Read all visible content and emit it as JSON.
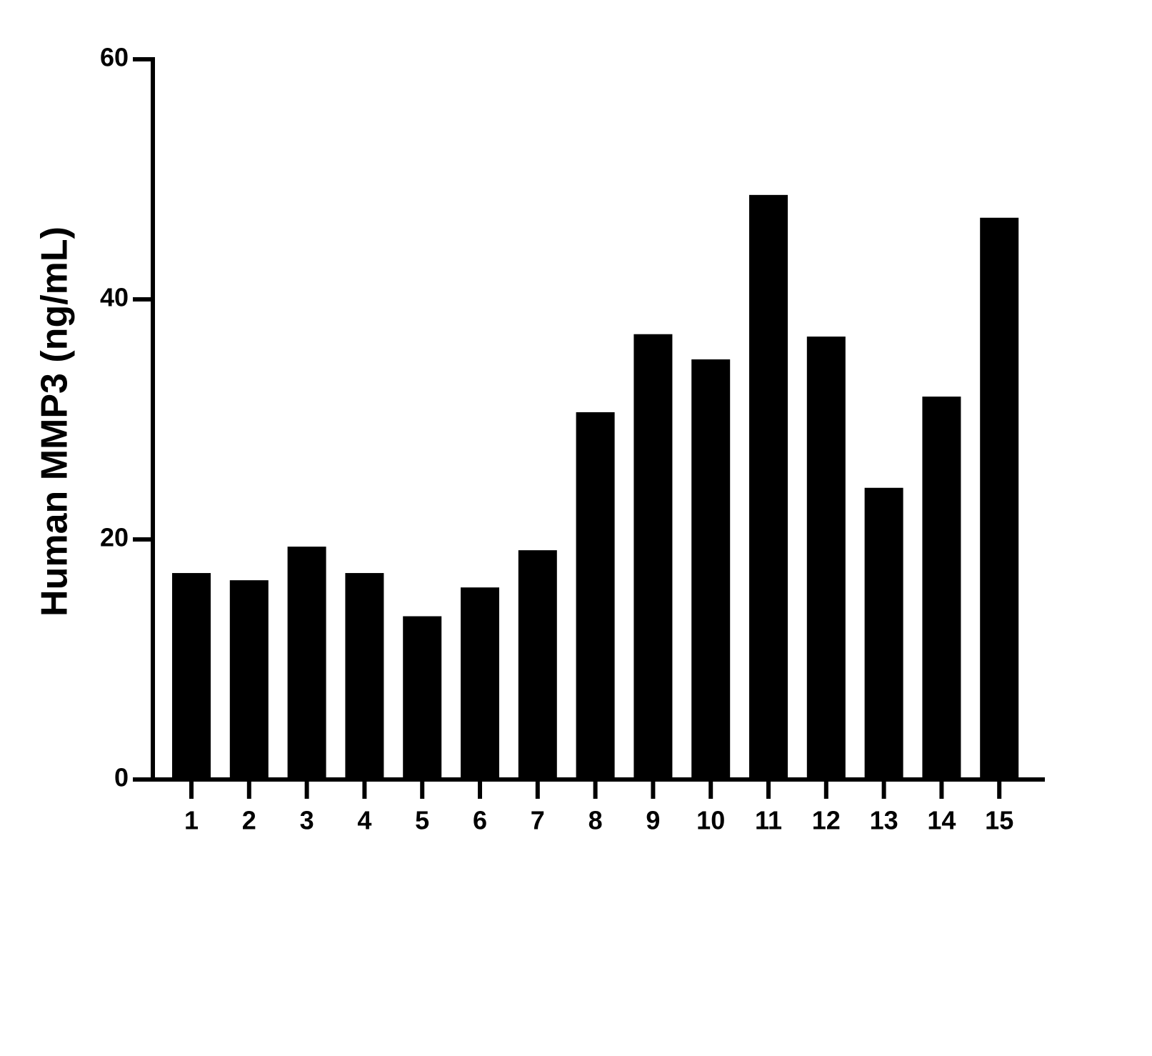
{
  "chart_data": {
    "type": "bar",
    "y_label": "Human MMP3 (ng/mL)",
    "categories": [
      "1",
      "2",
      "3",
      "4",
      "5",
      "6",
      "7",
      "8",
      "9",
      "10",
      "11",
      "12",
      "13",
      "14",
      "15"
    ],
    "values": [
      17.2,
      16.6,
      19.4,
      17.2,
      13.6,
      16.0,
      19.1,
      30.6,
      37.1,
      35.0,
      48.7,
      36.9,
      24.3,
      31.9,
      46.8
    ],
    "color": "#000000",
    "ylim": [
      0,
      60
    ],
    "yticks": [
      0,
      20,
      40,
      60
    ],
    "grid": false
  }
}
